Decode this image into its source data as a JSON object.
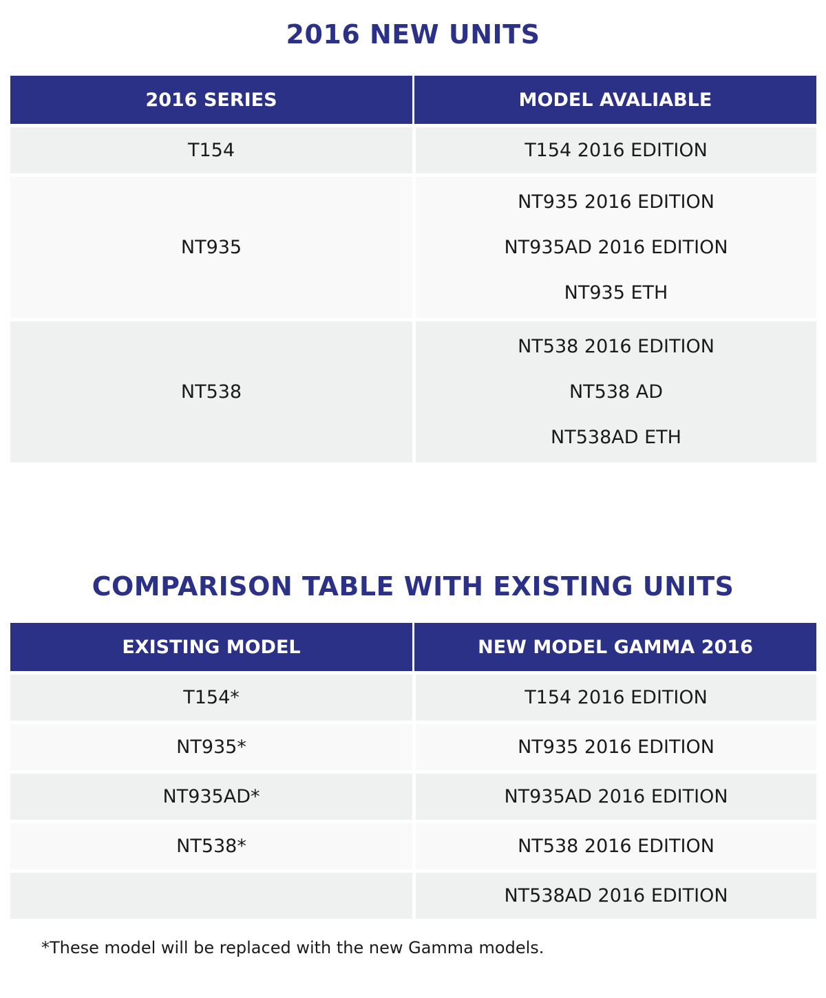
{
  "new_units": {
    "title": "2016 NEW UNITS",
    "headers": [
      "2016 SERIES",
      "MODEL AVALIABLE"
    ],
    "rows": [
      {
        "series": "T154",
        "models": [
          "T154 2016 EDITION"
        ]
      },
      {
        "series": "NT935",
        "models": [
          "NT935 2016 EDITION",
          "NT935AD 2016 EDITION",
          "NT935 ETH"
        ]
      },
      {
        "series": "NT538",
        "models": [
          "NT538 2016 EDITION",
          "NT538 AD",
          "NT538AD ETH"
        ]
      }
    ]
  },
  "comparison": {
    "title": "COMPARISON TABLE WITH EXISTING UNITS",
    "headers": [
      "EXISTING MODEL",
      "NEW MODEL GAMMA 2016"
    ],
    "rows": [
      {
        "existing": "T154*",
        "new": "T154 2016 EDITION"
      },
      {
        "existing": "NT935*",
        "new": "NT935 2016 EDITION"
      },
      {
        "existing": "NT935AD*",
        "new": "NT935AD 2016 EDITION"
      },
      {
        "existing": "NT538*",
        "new": "NT538 2016 EDITION"
      },
      {
        "existing": "",
        "new": "NT538AD 2016 EDITION"
      }
    ]
  },
  "footnote": "*These model will be replaced with the new Gamma models.",
  "colors": {
    "header_background": "#2a3186",
    "title_text": "#2a3186",
    "row_dark": "#eff1f1",
    "row_light": "#f9f9f9"
  }
}
